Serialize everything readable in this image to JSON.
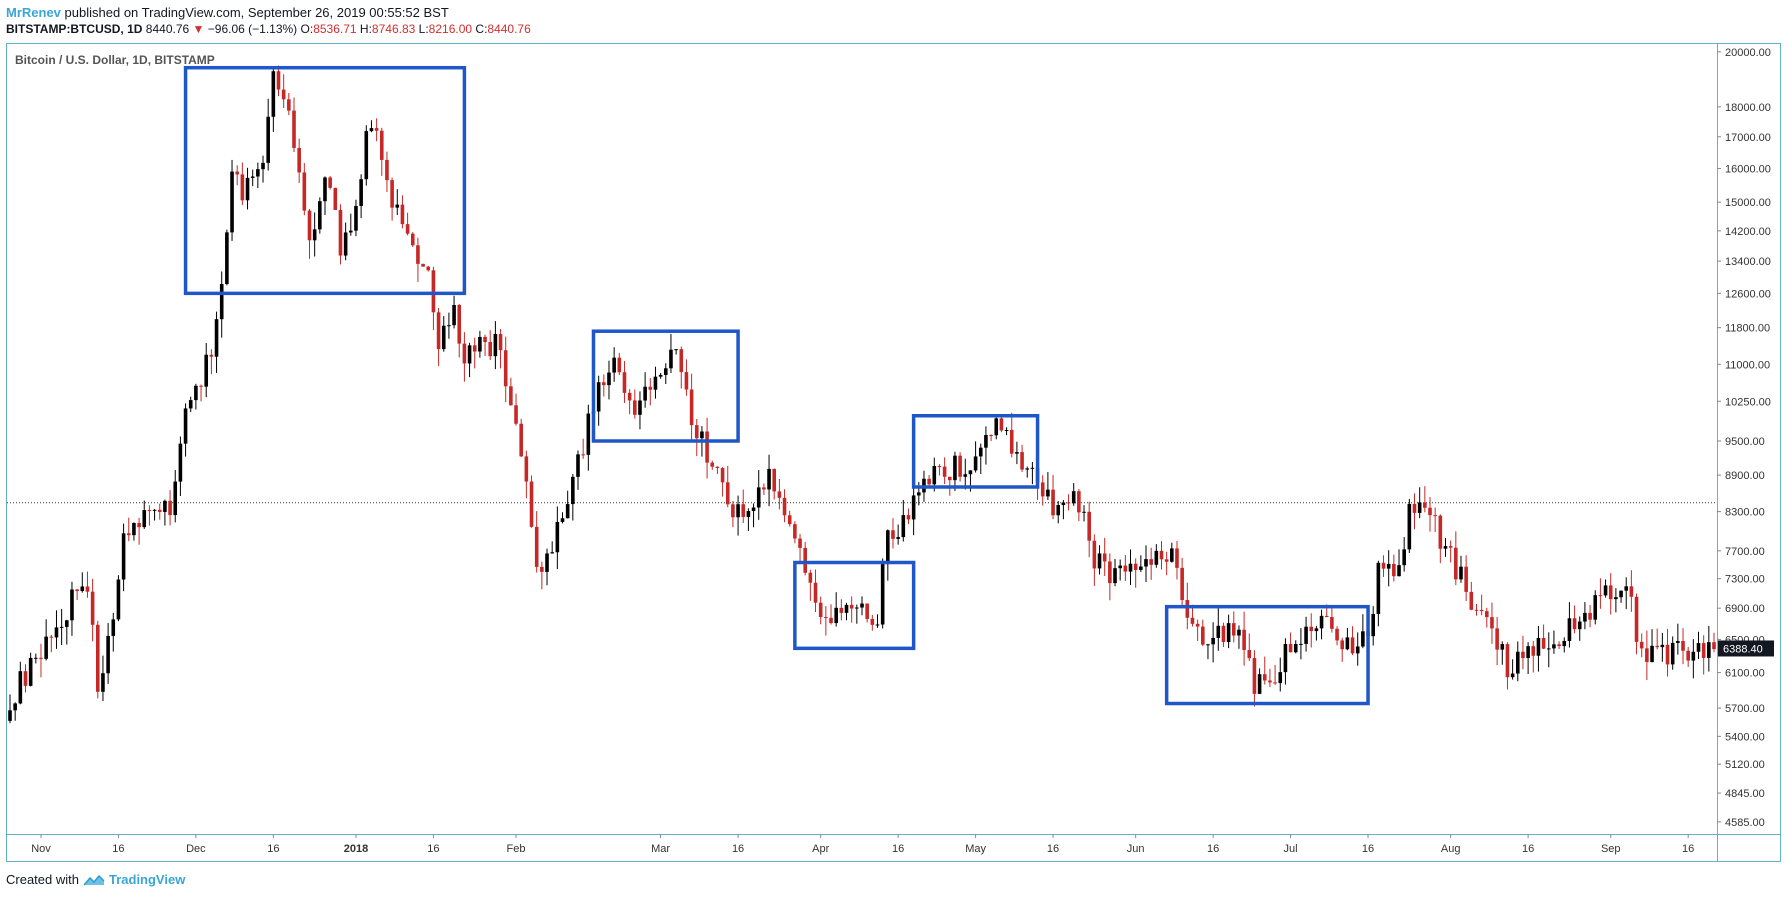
{
  "header": {
    "author": "MrRenev",
    "published_text": "published on TradingView.com, September 26, 2019 00:55:52 BST",
    "symbol": "BITSTAMP:BTCUSD, 1D",
    "last_price": "8440.76",
    "change": "−96.06 (−1.13%)",
    "ohlc": {
      "o_label": "O:",
      "o": "8536.71",
      "h_label": "H:",
      "h": "8746.83",
      "l_label": "L:",
      "l": "8216.00",
      "c_label": "C:",
      "c": "8440.76"
    }
  },
  "footer": {
    "created_with": "Created with",
    "brand": "TradingView"
  },
  "colors": {
    "up": "#000000",
    "down": "#c62828",
    "box": "#1f57c9",
    "border": "#5fb4c8",
    "accent": "#3ba6d6"
  },
  "chart_data": {
    "type": "candlestick",
    "title": "Bitcoin / U.S. Dollar, 1D, BITSTAMP",
    "y_scale": "log",
    "ylim": [
      4480,
      20300
    ],
    "y_ticks": [
      "20000.00",
      "18000.00",
      "17000.00",
      "16000.00",
      "15000.00",
      "14200.00",
      "13400.00",
      "12600.00",
      "11800.00",
      "11000.00",
      "10250.00",
      "9500.00",
      "8900.00",
      "8300.00",
      "7700.00",
      "7300.00",
      "6900.00",
      "6500.00",
      "6100.00",
      "5700.00",
      "5400.00",
      "5120.00",
      "4845.00",
      "4585.00"
    ],
    "x_ticks": [
      {
        "label": "Nov",
        "date": "2017-11-01"
      },
      {
        "label": "16",
        "date": "2017-11-16"
      },
      {
        "label": "Dec",
        "date": "2017-12-01"
      },
      {
        "label": "16",
        "date": "2017-12-16"
      },
      {
        "label": "2018",
        "date": "2018-01-01",
        "bold": true
      },
      {
        "label": "16",
        "date": "2018-01-16"
      },
      {
        "label": "Feb",
        "date": "2018-02-01"
      },
      {
        "label": "Mar",
        "date": "2018-03-01"
      },
      {
        "label": "16",
        "date": "2018-03-16"
      },
      {
        "label": "Apr",
        "date": "2018-04-01"
      },
      {
        "label": "16",
        "date": "2018-04-16"
      },
      {
        "label": "May",
        "date": "2018-05-01"
      },
      {
        "label": "16",
        "date": "2018-05-16"
      },
      {
        "label": "Jun",
        "date": "2018-06-01"
      },
      {
        "label": "16",
        "date": "2018-06-16"
      },
      {
        "label": "Jul",
        "date": "2018-07-01"
      },
      {
        "label": "16",
        "date": "2018-07-16"
      },
      {
        "label": "Aug",
        "date": "2018-08-01"
      },
      {
        "label": "16",
        "date": "2018-08-16"
      },
      {
        "label": "Sep",
        "date": "2018-09-01"
      },
      {
        "label": "16",
        "date": "2018-09-16"
      }
    ],
    "date_range": [
      "2017-10-26",
      "2018-09-21"
    ],
    "current_price": {
      "value": 6388.4,
      "label": "6388.40"
    },
    "reference_line": 8440.76,
    "anchors": [
      [
        "2017-10-26",
        5800
      ],
      [
        "2017-11-01",
        6400
      ],
      [
        "2017-11-07",
        7000
      ],
      [
        "2017-11-10",
        7300
      ],
      [
        "2017-11-12",
        6000
      ],
      [
        "2017-11-14",
        6500
      ],
      [
        "2017-11-17",
        7800
      ],
      [
        "2017-11-21",
        8200
      ],
      [
        "2017-11-26",
        8300
      ],
      [
        "2017-11-29",
        9900
      ],
      [
        "2017-12-04",
        11300
      ],
      [
        "2017-12-06",
        13000
      ],
      [
        "2017-12-08",
        16200
      ],
      [
        "2017-12-10",
        15000
      ],
      [
        "2017-12-14",
        16500
      ],
      [
        "2017-12-16",
        19200
      ],
      [
        "2017-12-19",
        17800
      ],
      [
        "2017-12-22",
        14500
      ],
      [
        "2017-12-24",
        14000
      ],
      [
        "2017-12-26",
        16000
      ],
      [
        "2017-12-29",
        13800
      ],
      [
        "2017-12-31",
        14200
      ],
      [
        "2018-01-03",
        16800
      ],
      [
        "2018-01-05",
        17000
      ],
      [
        "2018-01-07",
        15500
      ],
      [
        "2018-01-10",
        14200
      ],
      [
        "2018-01-12",
        13800
      ],
      [
        "2018-01-15",
        13400
      ],
      [
        "2018-01-17",
        11300
      ],
      [
        "2018-01-20",
        12500
      ],
      [
        "2018-01-22",
        11000
      ],
      [
        "2018-01-24",
        11300
      ],
      [
        "2018-01-28",
        11400
      ],
      [
        "2018-02-01",
        10000
      ],
      [
        "2018-02-05",
        7500
      ],
      [
        "2018-02-07",
        7600
      ],
      [
        "2018-02-12",
        8700
      ],
      [
        "2018-02-16",
        10200
      ],
      [
        "2018-02-20",
        11200
      ],
      [
        "2018-02-24",
        9800
      ],
      [
        "2018-02-28",
        10800
      ],
      [
        "2018-03-04",
        11400
      ],
      [
        "2018-03-07",
        9800
      ],
      [
        "2018-03-10",
        9300
      ],
      [
        "2018-03-13",
        8600
      ],
      [
        "2018-03-17",
        8200
      ],
      [
        "2018-03-20",
        8700
      ],
      [
        "2018-03-22",
        8800
      ],
      [
        "2018-03-25",
        8300
      ],
      [
        "2018-03-28",
        7800
      ],
      [
        "2018-03-31",
        6900
      ],
      [
        "2018-04-04",
        6800
      ],
      [
        "2018-04-08",
        7000
      ],
      [
        "2018-04-12",
        6800
      ],
      [
        "2018-04-14",
        7900
      ],
      [
        "2018-04-18",
        8200
      ],
      [
        "2018-04-22",
        8900
      ],
      [
        "2018-04-26",
        9000
      ],
      [
        "2018-05-01",
        9200
      ],
      [
        "2018-05-05",
        9700
      ],
      [
        "2018-05-09",
        9300
      ],
      [
        "2018-05-13",
        8700
      ],
      [
        "2018-05-16",
        8400
      ],
      [
        "2018-05-21",
        8500
      ],
      [
        "2018-05-24",
        7600
      ],
      [
        "2018-05-28",
        7300
      ],
      [
        "2018-06-01",
        7500
      ],
      [
        "2018-06-05",
        7600
      ],
      [
        "2018-06-09",
        7600
      ],
      [
        "2018-06-11",
        6800
      ],
      [
        "2018-06-14",
        6400
      ],
      [
        "2018-06-17",
        6600
      ],
      [
        "2018-06-20",
        6700
      ],
      [
        "2018-06-24",
        6000
      ],
      [
        "2018-06-28",
        6100
      ],
      [
        "2018-07-01",
        6400
      ],
      [
        "2018-07-05",
        6600
      ],
      [
        "2018-07-09",
        6700
      ],
      [
        "2018-07-13",
        6300
      ],
      [
        "2018-07-16",
        6600
      ],
      [
        "2018-07-18",
        7400
      ],
      [
        "2018-07-22",
        7500
      ],
      [
        "2018-07-24",
        8300
      ],
      [
        "2018-07-28",
        8200
      ],
      [
        "2018-08-01",
        7600
      ],
      [
        "2018-08-05",
        7000
      ],
      [
        "2018-08-09",
        6500
      ],
      [
        "2018-08-12",
        6200
      ],
      [
        "2018-08-16",
        6300
      ],
      [
        "2018-08-21",
        6500
      ],
      [
        "2018-08-26",
        6700
      ],
      [
        "2018-08-30",
        7000
      ],
      [
        "2018-09-04",
        7300
      ],
      [
        "2018-09-06",
        6500
      ],
      [
        "2018-09-10",
        6250
      ],
      [
        "2018-09-14",
        6400
      ],
      [
        "2018-09-18",
        6350
      ],
      [
        "2018-09-21",
        6388
      ]
    ],
    "annotations": [
      {
        "type": "rect",
        "x": [
          "2017-11-29",
          "2018-01-22"
        ],
        "y": [
          12600,
          19400
        ]
      },
      {
        "type": "rect",
        "x": [
          "2018-02-16",
          "2018-03-16"
        ],
        "y": [
          9500,
          11720
        ]
      },
      {
        "type": "rect",
        "x": [
          "2018-03-27",
          "2018-04-19"
        ],
        "y": [
          6390,
          7530
        ]
      },
      {
        "type": "rect",
        "x": [
          "2018-04-19",
          "2018-05-13"
        ],
        "y": [
          8700,
          9970
        ]
      },
      {
        "type": "rect",
        "x": [
          "2018-06-07",
          "2018-07-16"
        ],
        "y": [
          5750,
          6920
        ]
      }
    ]
  }
}
